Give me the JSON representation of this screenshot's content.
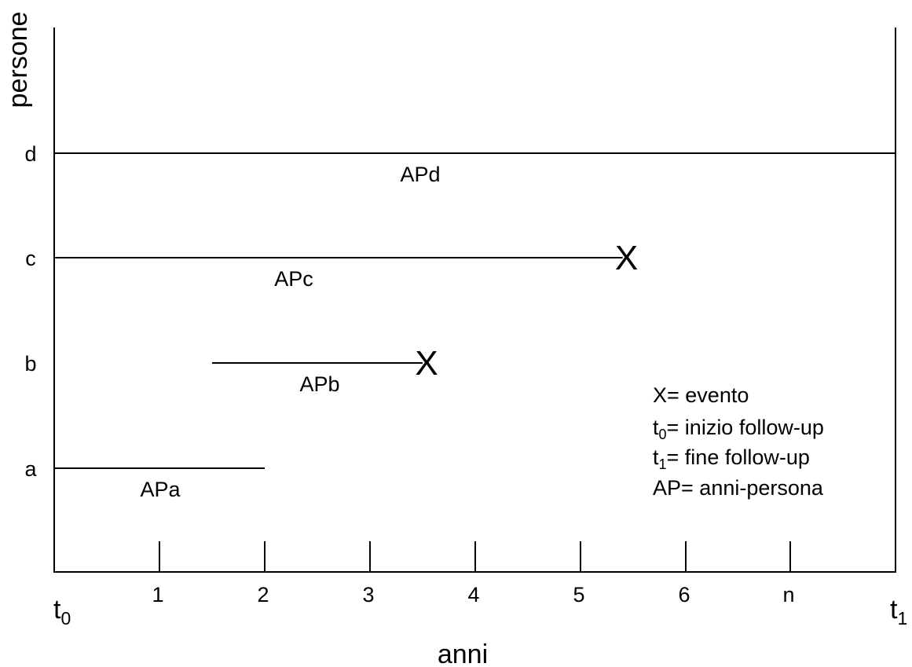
{
  "diagram": {
    "y_axis_label": "persone",
    "x_axis_label": "anni",
    "start_label": {
      "base": "t",
      "sub": "0"
    },
    "end_label": {
      "base": "t",
      "sub": "1"
    },
    "x_ticks": [
      "1",
      "2",
      "3",
      "4",
      "5",
      "6",
      "n"
    ],
    "persons": [
      {
        "label": "d",
        "start": 0,
        "end": 8,
        "event": false,
        "segment_label": "APd"
      },
      {
        "label": "c",
        "start": 0,
        "end": 5.4,
        "event": true,
        "segment_label": "APc"
      },
      {
        "label": "b",
        "start": 1.5,
        "end": 3.5,
        "event": true,
        "segment_label": "APb"
      },
      {
        "label": "a",
        "start": 0,
        "end": 2,
        "event": false,
        "segment_label": "APa"
      }
    ],
    "event_marker": "X",
    "legend": [
      {
        "base": "X",
        "sub": "",
        "rest": "= evento"
      },
      {
        "base": "t",
        "sub": "0",
        "rest": "= inizio follow-up"
      },
      {
        "base": "t",
        "sub": "1",
        "rest": "= fine follow-up"
      },
      {
        "base": "AP",
        "sub": "",
        "rest": "= anni-persona"
      }
    ],
    "line_color": "#000000"
  }
}
